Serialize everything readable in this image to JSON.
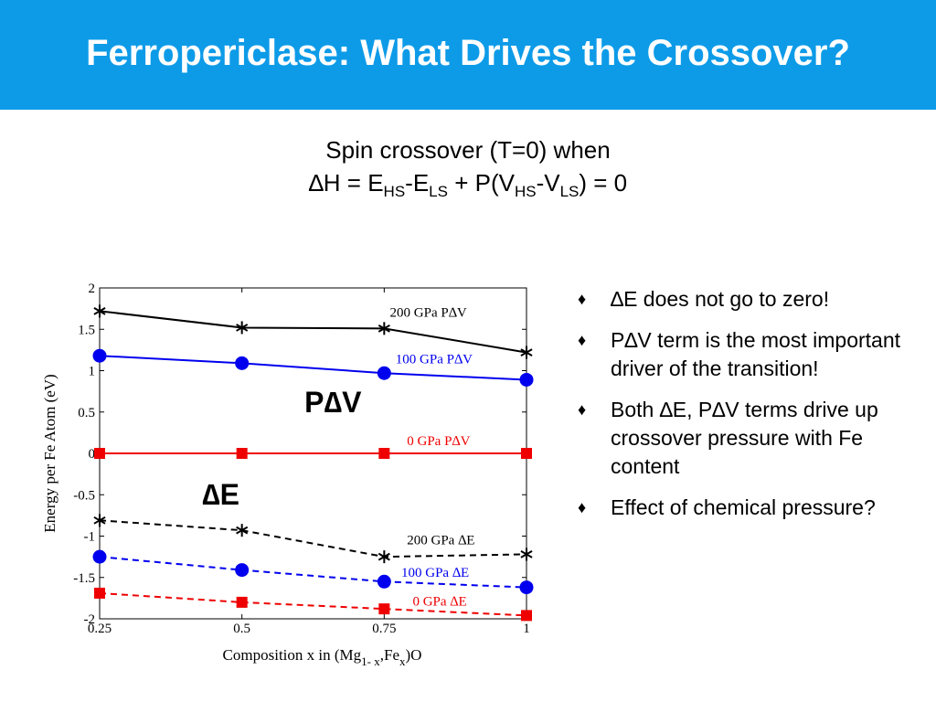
{
  "slide": {
    "title": "Ferropericlase: What Drives the Crossover?",
    "subtitle": {
      "line1": "Spin crossover (T=0) when",
      "line2_delta": "∆",
      "line2_a": "H = E",
      "sub_hs": "HS",
      "line2_b": "-E",
      "sub_ls": "LS",
      "line2_c": " + P(V",
      "sub_hs2": "HS",
      "line2_d": "-V",
      "sub_ls2": "LS",
      "line2_e": ") = 0"
    }
  },
  "bullets": {
    "marker": "♦",
    "items": [
      {
        "text": "∆E does not go to zero!"
      },
      {
        "text": "P∆V term is the most important driver of the transition!"
      },
      {
        "text": "Both ∆E, P∆V terms drive up crossover pressure with Fe content"
      },
      {
        "text": "Effect of chemical pressure?"
      }
    ]
  },
  "chart_data": {
    "type": "line",
    "xlabel_main": "Composition x in (Mg",
    "xlabel_sub1": "1- x",
    "xlabel_mid": ",Fe",
    "xlabel_sub2": "x",
    "xlabel_end": ")O",
    "ylabel": "Energy per Fe Atom (eV)",
    "xlim": [
      0.25,
      1
    ],
    "ylim": [
      -2,
      2
    ],
    "x_ticks": [
      0.25,
      0.5,
      0.75,
      1
    ],
    "x_tick_labels": [
      "0.25",
      "0.5",
      "0.75",
      "1"
    ],
    "y_ticks": [
      -2,
      -1.5,
      -1,
      -0.5,
      0,
      0.5,
      1,
      1.5,
      2
    ],
    "y_tick_labels": [
      "-2",
      "-1.5",
      "-1",
      "-0.5",
      "0",
      "0.5",
      "1",
      "1.5",
      "2"
    ],
    "x": [
      0.25,
      0.5,
      0.75,
      1
    ],
    "series": [
      {
        "name": "200 GPa P∆V",
        "values": [
          1.72,
          1.52,
          1.51,
          1.22
        ],
        "color": "#000000",
        "dashed": false,
        "marker": "star",
        "label_at": [
          0.76,
          1.65
        ]
      },
      {
        "name": "100 GPa P∆V",
        "values": [
          1.18,
          1.09,
          0.97,
          0.89
        ],
        "color": "#0000ee",
        "dashed": false,
        "marker": "circle",
        "label_at": [
          0.77,
          1.09
        ]
      },
      {
        "name": "0 GPa P∆V",
        "values": [
          0.0,
          0.0,
          0.0,
          0.0
        ],
        "color": "#ee0000",
        "dashed": false,
        "marker": "square",
        "label_at": [
          0.79,
          0.1
        ]
      },
      {
        "name": "200 GPa ∆E",
        "values": [
          -0.81,
          -0.93,
          -1.25,
          -1.22
        ],
        "color": "#000000",
        "dashed": true,
        "marker": "star",
        "label_at": [
          0.79,
          -1.1
        ]
      },
      {
        "name": "100 GPa ∆E",
        "values": [
          -1.25,
          -1.41,
          -1.55,
          -1.62
        ],
        "color": "#0000ee",
        "dashed": true,
        "marker": "circle",
        "label_at": [
          0.78,
          -1.49
        ]
      },
      {
        "name": "0 GPa ∆E",
        "values": [
          -1.69,
          -1.8,
          -1.88,
          -1.96
        ],
        "color": "#ee0000",
        "dashed": true,
        "marker": "square",
        "label_at": [
          0.8,
          -1.84
        ]
      }
    ],
    "annotations": [
      {
        "text": "P∆V",
        "at": [
          0.61,
          0.5
        ]
      },
      {
        "text": "∆E",
        "at": [
          0.43,
          -0.62
        ]
      }
    ]
  }
}
